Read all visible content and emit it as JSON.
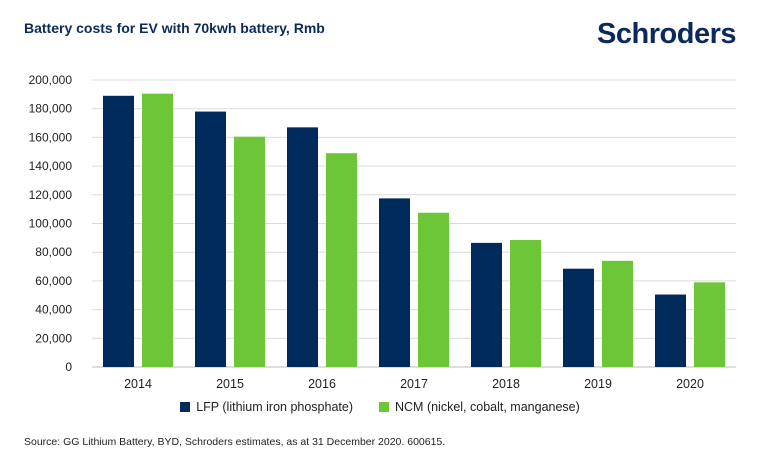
{
  "header": {
    "title": "Battery costs for EV with 70kwh battery, Rmb",
    "logo": "Schroders"
  },
  "colors": {
    "lfp": "#002a5c",
    "ncm": "#6cc637",
    "grid": "#dcdcdc",
    "text": "#222222"
  },
  "chart_data": {
    "type": "bar",
    "title": "Battery costs for EV with 70kwh battery, Rmb",
    "xlabel": "",
    "ylabel": "",
    "categories": [
      "2014",
      "2015",
      "2016",
      "2017",
      "2018",
      "2019",
      "2020"
    ],
    "series": [
      {
        "name": "LFP (lithium iron phosphate)",
        "values": [
          189000,
          178000,
          167000,
          117500,
          86500,
          68500,
          50500
        ]
      },
      {
        "name": "NCM (nickel, cobalt, manganese)",
        "values": [
          190500,
          160500,
          149000,
          107500,
          88500,
          74000,
          59000
        ]
      }
    ],
    "ylim": [
      0,
      200000
    ],
    "yticks": [
      "0",
      "20,000",
      "40,000",
      "60,000",
      "80,000",
      "100,000",
      "120,000",
      "140,000",
      "160,000",
      "180,000",
      "200,000"
    ],
    "grid": true,
    "legend_position": "bottom"
  },
  "source": "Source: GG Lithium Battery, BYD, Schroders estimates, as at 31 December 2020. 600615."
}
